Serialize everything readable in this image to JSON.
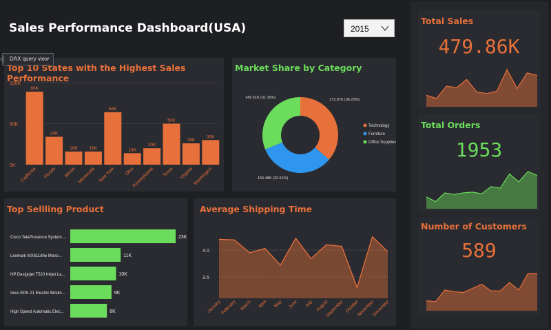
{
  "header": {
    "title": "Sales Performance Dashboard(USA)",
    "year_selected": "2015",
    "tooltip": "DAX query view"
  },
  "colors": {
    "orange": "#e8703a",
    "green": "#6bdc5b",
    "blue": "#2f96f0",
    "panel": "#2a2b30"
  },
  "kpis": {
    "sales": {
      "title": "Total Sales",
      "value": "479.86K"
    },
    "orders": {
      "title": "Total Orders",
      "value": "1953"
    },
    "customers": {
      "title": "Number of Customers",
      "value": "589"
    }
  },
  "chart_data": [
    {
      "id": "states",
      "type": "bar",
      "title": "Top 10 States with the Highest Sales Performance",
      "categories": [
        "California",
        "Florida",
        "Illinois",
        "Minnesota",
        "New York",
        "Ohio",
        "Pennsylvania",
        "Texas",
        "Virginia",
        "Washington"
      ],
      "values": [
        89,
        34,
        16,
        16,
        64,
        14,
        20,
        50,
        26,
        30
      ],
      "labels": [
        "89K",
        "34K",
        "16K",
        "16K",
        "64K",
        "14K",
        "20K",
        "50K",
        "26K",
        "30K"
      ],
      "yticks": [
        "0K",
        "50K",
        "100K"
      ],
      "ylim": [
        0,
        100
      ],
      "grid": true
    },
    {
      "id": "category",
      "type": "pie",
      "title": "Market Share by Category",
      "slices": [
        {
          "name": "Technology",
          "value": 173.87,
          "label": "173.87K (36.23%)",
          "color": "#e8703a"
        },
        {
          "name": "Furniture",
          "value": 156.48,
          "label": "156.48K (32.61%)",
          "color": "#2f96f0"
        },
        {
          "name": "Office Supplies",
          "value": 149.51,
          "label": "149.51K (31.16%)",
          "color": "#6bdc5b"
        }
      ],
      "legend": [
        "Technology",
        "Furniture",
        "Office Supplies"
      ],
      "legend_placement": "right"
    },
    {
      "id": "products",
      "type": "bar",
      "orientation": "horizontal",
      "title": "Top Sellling Product",
      "categories": [
        "Cisco TelePresence System ...",
        "Lexmark MX611dhe Mono...",
        "HP Designjet T520 Inkjet La...",
        "Ibico EPK-21 Electric Bindin...",
        "High Speed Automatic Elec..."
      ],
      "values": [
        23,
        11,
        10,
        9,
        8
      ],
      "labels": [
        "23K",
        "11K",
        "10K",
        "9K",
        "8K"
      ]
    },
    {
      "id": "shipping",
      "type": "area",
      "title": "Average Shipping Time",
      "categories": [
        "January",
        "February",
        "March",
        "April",
        "May",
        "June",
        "July",
        "August",
        "September",
        "October",
        "November",
        "December"
      ],
      "values": [
        4.2,
        4.19,
        3.95,
        4.03,
        3.72,
        4.22,
        3.84,
        4.1,
        4.07,
        3.3,
        4.25,
        3.97
      ],
      "yticks": [
        "3.5",
        "4.0"
      ],
      "ylim": [
        3.1,
        4.45
      ],
      "grid": true
    },
    {
      "id": "sales_trend",
      "type": "area",
      "values": [
        14,
        10,
        25,
        23,
        33,
        18,
        16,
        19,
        45,
        22,
        41,
        38
      ]
    },
    {
      "id": "orders_trend",
      "type": "area",
      "values": [
        15,
        9,
        20,
        18,
        20,
        21,
        19,
        28,
        26,
        44,
        34,
        47,
        42
      ]
    },
    {
      "id": "customers_trend",
      "type": "area",
      "values": [
        12,
        11,
        25,
        23,
        22,
        27,
        32,
        24,
        24,
        34,
        25,
        45,
        45
      ]
    }
  ]
}
